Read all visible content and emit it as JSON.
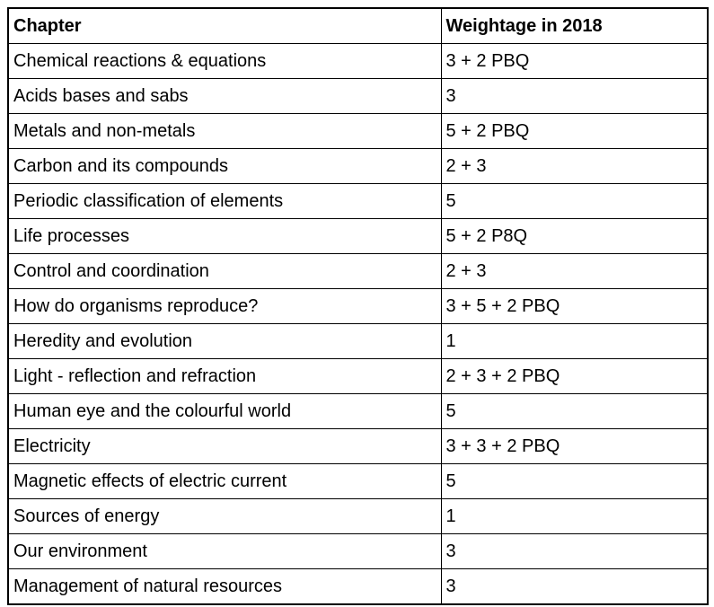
{
  "table": {
    "columns": [
      "Chapter",
      "Weightage in 2018"
    ],
    "rows": [
      {
        "chapter": "Chemical reactions & equations",
        "weightage": "3 + 2 PBQ"
      },
      {
        "chapter": "Acids bases and sabs",
        "weightage": "3"
      },
      {
        "chapter": "Metals and non-metals",
        "weightage": "5 + 2 PBQ"
      },
      {
        "chapter": "Carbon and its compounds",
        "weightage": "2 + 3"
      },
      {
        "chapter": "Periodic classification of elements",
        "weightage": "5"
      },
      {
        "chapter": "Life processes",
        "weightage": "5 + 2 P8Q"
      },
      {
        "chapter": "Control and coordination",
        "weightage": "2 + 3"
      },
      {
        "chapter": "How do organisms reproduce?",
        "weightage": "3 + 5 + 2 PBQ"
      },
      {
        "chapter": "Heredity and evolution",
        "weightage": "1"
      },
      {
        "chapter": "Light - reflection and refraction",
        "weightage": "2 + 3 + 2 PBQ"
      },
      {
        "chapter": "Human eye and the colourful world",
        "weightage": "5"
      },
      {
        "chapter": "Electricity",
        "weightage": "3 + 3 + 2 PBQ"
      },
      {
        "chapter": "Magnetic effects of electric current",
        "weightage": "5"
      },
      {
        "chapter": "Sources of energy",
        "weightage": "1"
      },
      {
        "chapter": "Our environment",
        "weightage": "3"
      },
      {
        "chapter": "Management of natural resources",
        "weightage": "3"
      }
    ],
    "colors": {
      "border": "#000000",
      "text": "#000000",
      "background": "#ffffff"
    }
  }
}
